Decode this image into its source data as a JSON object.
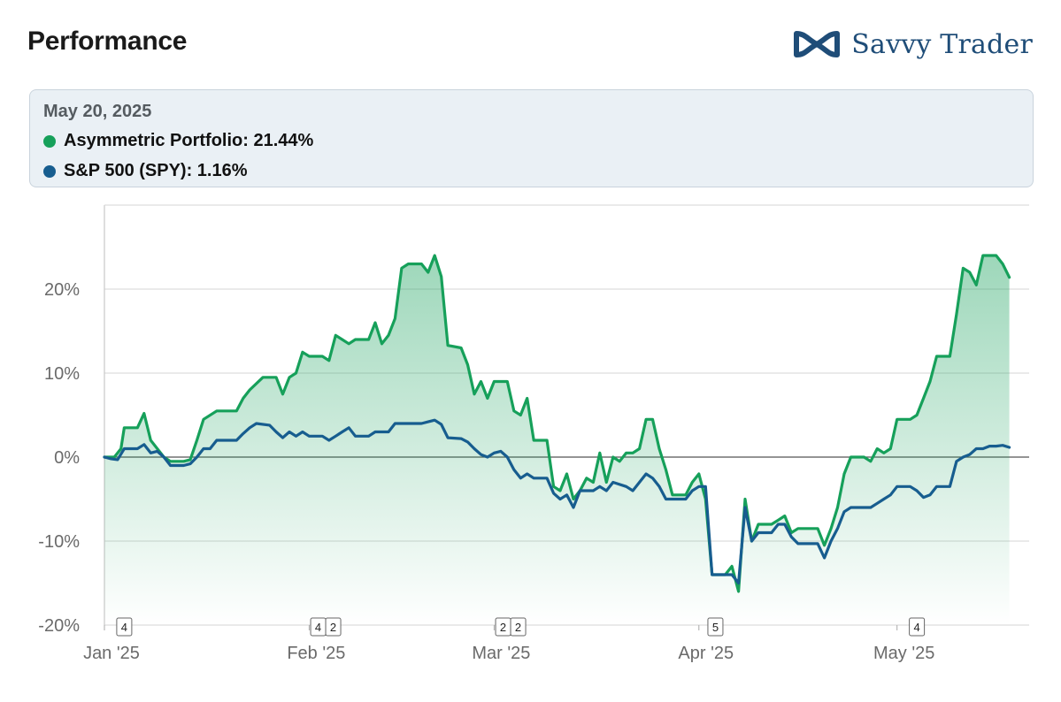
{
  "header": {
    "title": "Performance",
    "brand_name": "Savvy Trader",
    "brand_logo_icon": "infinity-wave-logo-icon"
  },
  "tooltip": {
    "date": "May 20, 2025",
    "rows": [
      {
        "label": "Asymmetric Portfolio: 21.44%",
        "color": "#16a05a"
      },
      {
        "label": "S&P 500 (SPY): 1.16%",
        "color": "#175d8f"
      }
    ]
  },
  "chart_data": {
    "type": "area",
    "title": "Performance",
    "ylabel": "",
    "xlabel": "",
    "ylim": [
      -20,
      30
    ],
    "xlim": [
      0,
      140
    ],
    "y_ticks": [
      {
        "value": 20,
        "label": "20%"
      },
      {
        "value": 10,
        "label": "10%"
      },
      {
        "value": 0,
        "label": "0%"
      },
      {
        "value": -10,
        "label": "-10%"
      },
      {
        "value": -20,
        "label": "-20%"
      }
    ],
    "x_ticks": [
      {
        "value": 0,
        "label": "Jan '25"
      },
      {
        "value": 31,
        "label": "Feb '25"
      },
      {
        "value": 59,
        "label": "Mar '25"
      },
      {
        "value": 90,
        "label": "Apr '25"
      },
      {
        "value": 120,
        "label": "May '25"
      }
    ],
    "event_markers": [
      {
        "x": 3,
        "labels": [
          "4"
        ]
      },
      {
        "x": 33.5,
        "labels": [
          "4",
          "2"
        ]
      },
      {
        "x": 61.5,
        "labels": [
          "2",
          "2"
        ]
      },
      {
        "x": 92.5,
        "labels": [
          "5"
        ]
      },
      {
        "x": 123,
        "labels": [
          "4"
        ]
      }
    ],
    "series": [
      {
        "name": "Asymmetric Portfolio",
        "color": "#16a05a",
        "fill": true,
        "points": [
          [
            0,
            0
          ],
          [
            1.5,
            0
          ],
          [
            2.5,
            1
          ],
          [
            3,
            3.5
          ],
          [
            5,
            3.5
          ],
          [
            6,
            5.2
          ],
          [
            7,
            2
          ],
          [
            9,
            0
          ],
          [
            10,
            -0.5
          ],
          [
            12,
            -0.5
          ],
          [
            13,
            -0.3
          ],
          [
            14,
            2
          ],
          [
            15,
            4.5
          ],
          [
            17,
            5.5
          ],
          [
            20,
            5.5
          ],
          [
            21,
            7
          ],
          [
            22,
            8
          ],
          [
            24,
            9.5
          ],
          [
            26,
            9.5
          ],
          [
            27,
            7.5
          ],
          [
            28,
            9.5
          ],
          [
            29,
            10
          ],
          [
            30,
            12.5
          ],
          [
            31,
            12
          ],
          [
            33,
            12
          ],
          [
            34,
            11.5
          ],
          [
            35,
            14.5
          ],
          [
            36,
            14
          ],
          [
            37,
            13.5
          ],
          [
            38,
            14
          ],
          [
            40,
            14
          ],
          [
            41,
            16
          ],
          [
            42,
            13.5
          ],
          [
            43,
            14.5
          ],
          [
            44,
            16.5
          ],
          [
            45,
            22.5
          ],
          [
            46,
            23
          ],
          [
            48,
            23
          ],
          [
            49,
            22
          ],
          [
            50,
            24
          ],
          [
            51,
            21.5
          ],
          [
            52,
            13.3
          ],
          [
            54,
            13
          ],
          [
            55,
            11
          ],
          [
            56,
            7.5
          ],
          [
            57,
            9
          ],
          [
            58,
            7
          ],
          [
            59,
            9
          ],
          [
            61,
            9
          ],
          [
            62,
            5.5
          ],
          [
            63,
            5
          ],
          [
            64,
            7
          ],
          [
            65,
            2
          ],
          [
            67,
            2
          ],
          [
            68,
            -3.5
          ],
          [
            69,
            -4
          ],
          [
            70,
            -2
          ],
          [
            71,
            -5
          ],
          [
            72,
            -4
          ],
          [
            73,
            -2.5
          ],
          [
            74,
            -3
          ],
          [
            75,
            0.5
          ],
          [
            76,
            -3
          ],
          [
            77,
            0
          ],
          [
            78,
            -0.5
          ],
          [
            79,
            0.5
          ],
          [
            80,
            0.5
          ],
          [
            81,
            1
          ],
          [
            82,
            4.5
          ],
          [
            83,
            4.5
          ],
          [
            84,
            1
          ],
          [
            85,
            -1.5
          ],
          [
            86,
            -4.5
          ],
          [
            87,
            -4.5
          ],
          [
            88,
            -4.5
          ],
          [
            89,
            -3
          ],
          [
            90,
            -2
          ],
          [
            91,
            -5
          ],
          [
            92,
            -14
          ],
          [
            94,
            -14
          ],
          [
            95,
            -13
          ],
          [
            96,
            -16
          ],
          [
            97,
            -5
          ],
          [
            98,
            -10
          ],
          [
            99,
            -8
          ],
          [
            101,
            -8
          ],
          [
            102,
            -7.5
          ],
          [
            103,
            -7
          ],
          [
            104,
            -9
          ],
          [
            105,
            -8.5
          ],
          [
            107,
            -8.5
          ],
          [
            108,
            -8.5
          ],
          [
            109,
            -10.5
          ],
          [
            110,
            -8.5
          ],
          [
            111,
            -6
          ],
          [
            112,
            -2
          ],
          [
            113,
            0
          ],
          [
            115,
            0
          ],
          [
            116,
            -0.5
          ],
          [
            117,
            1
          ],
          [
            118,
            0.5
          ],
          [
            119,
            1
          ],
          [
            120,
            4.5
          ],
          [
            122,
            4.5
          ],
          [
            123,
            5
          ],
          [
            124,
            7
          ],
          [
            125,
            9
          ],
          [
            126,
            12
          ],
          [
            128,
            12
          ],
          [
            129,
            17
          ],
          [
            130,
            22.5
          ],
          [
            131,
            22
          ],
          [
            132,
            20.5
          ],
          [
            133,
            24
          ],
          [
            135,
            24
          ],
          [
            136,
            23
          ],
          [
            137,
            21.4
          ]
        ]
      },
      {
        "name": "S&P 500 (SPY)",
        "color": "#175d8f",
        "fill": false,
        "points": [
          [
            0,
            0
          ],
          [
            1,
            -0.2
          ],
          [
            2,
            -0.3
          ],
          [
            3,
            1
          ],
          [
            5,
            1
          ],
          [
            6,
            1.5
          ],
          [
            7,
            0.5
          ],
          [
            8,
            0.7
          ],
          [
            9,
            0
          ],
          [
            10,
            -1
          ],
          [
            12,
            -1
          ],
          [
            13,
            -0.8
          ],
          [
            14,
            0
          ],
          [
            15,
            1
          ],
          [
            16,
            1
          ],
          [
            17,
            2
          ],
          [
            20,
            2
          ],
          [
            21,
            2.8
          ],
          [
            22,
            3.5
          ],
          [
            23,
            4
          ],
          [
            25,
            3.8
          ],
          [
            26,
            3
          ],
          [
            27,
            2.3
          ],
          [
            28,
            3
          ],
          [
            29,
            2.5
          ],
          [
            30,
            3
          ],
          [
            31,
            2.5
          ],
          [
            33,
            2.5
          ],
          [
            34,
            2
          ],
          [
            35,
            2.5
          ],
          [
            36,
            3
          ],
          [
            37,
            3.5
          ],
          [
            38,
            2.5
          ],
          [
            40,
            2.5
          ],
          [
            41,
            3
          ],
          [
            42,
            3
          ],
          [
            43,
            3
          ],
          [
            44,
            4
          ],
          [
            48,
            4
          ],
          [
            49,
            4.2
          ],
          [
            50,
            4.4
          ],
          [
            51,
            3.9
          ],
          [
            52,
            2.3
          ],
          [
            54,
            2.2
          ],
          [
            55,
            1.8
          ],
          [
            56,
            1
          ],
          [
            57,
            0.3
          ],
          [
            58,
            0
          ],
          [
            59,
            0.5
          ],
          [
            60,
            0.7
          ],
          [
            61,
            0
          ],
          [
            62,
            -1.5
          ],
          [
            63,
            -2.5
          ],
          [
            64,
            -2
          ],
          [
            65,
            -2.5
          ],
          [
            67,
            -2.5
          ],
          [
            68,
            -4.3
          ],
          [
            69,
            -5
          ],
          [
            70,
            -4.5
          ],
          [
            71,
            -6
          ],
          [
            72,
            -4
          ],
          [
            74,
            -4
          ],
          [
            75,
            -3.5
          ],
          [
            76,
            -4
          ],
          [
            77,
            -3
          ],
          [
            79,
            -3.5
          ],
          [
            80,
            -4
          ],
          [
            82,
            -2
          ],
          [
            83,
            -2.5
          ],
          [
            84,
            -3.5
          ],
          [
            85,
            -5
          ],
          [
            87,
            -5
          ],
          [
            88,
            -5
          ],
          [
            89,
            -4
          ],
          [
            90,
            -3.5
          ],
          [
            91,
            -3.5
          ],
          [
            92,
            -14
          ],
          [
            94,
            -14
          ],
          [
            95,
            -14
          ],
          [
            96,
            -15
          ],
          [
            97,
            -6
          ],
          [
            98,
            -10
          ],
          [
            99,
            -9
          ],
          [
            101,
            -9
          ],
          [
            102,
            -8
          ],
          [
            103,
            -8
          ],
          [
            104,
            -9.5
          ],
          [
            105,
            -10.3
          ],
          [
            107,
            -10.3
          ],
          [
            108,
            -10.3
          ],
          [
            109,
            -12
          ],
          [
            110,
            -10
          ],
          [
            111,
            -8.5
          ],
          [
            112,
            -6.5
          ],
          [
            113,
            -6
          ],
          [
            115,
            -6
          ],
          [
            116,
            -6
          ],
          [
            117,
            -5.5
          ],
          [
            118,
            -5
          ],
          [
            119,
            -4.5
          ],
          [
            120,
            -3.5
          ],
          [
            122,
            -3.5
          ],
          [
            123,
            -4
          ],
          [
            124,
            -4.8
          ],
          [
            125,
            -4.5
          ],
          [
            126,
            -3.5
          ],
          [
            128,
            -3.5
          ],
          [
            129,
            -0.5
          ],
          [
            130,
            0
          ],
          [
            131,
            0.3
          ],
          [
            132,
            1
          ],
          [
            133,
            1
          ],
          [
            134,
            1.3
          ],
          [
            135,
            1.3
          ],
          [
            136,
            1.4
          ],
          [
            137,
            1.16
          ]
        ]
      }
    ]
  }
}
